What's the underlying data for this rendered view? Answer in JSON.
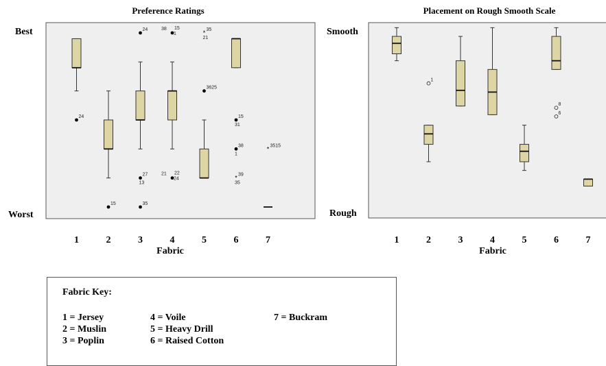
{
  "charts": [
    {
      "title": "Preference Ratings",
      "xlabel": "Fabric",
      "top_label": "Best",
      "bottom_label": "Worst"
    },
    {
      "title": "Placement on Rough Smooth Scale",
      "xlabel": "Fabric",
      "top_label": "Smooth",
      "bottom_label": "Rough"
    }
  ],
  "key": {
    "title": "Fabric Key:",
    "items": [
      "1 = Jersey",
      "2 = Muslin",
      "3 = Poplin",
      "4 = Voile",
      "5 = Heavy Drill",
      "6 = Raised Cotton",
      "7 = Buckram"
    ]
  },
  "colors": {
    "box_fill": "#ddd5a4",
    "plot_bg": "#efefef",
    "border": "#555555"
  },
  "chart_data": [
    {
      "type": "boxplot",
      "title": "Preference Ratings",
      "xlabel": "Fabric",
      "categories": [
        "1",
        "2",
        "3",
        "4",
        "5",
        "6",
        "7"
      ],
      "y_scale": "rating from 1 (Worst) to 7 (Best)",
      "ylim": [
        1,
        7
      ],
      "boxes": [
        {
          "cat": "1",
          "whisker_low": 5.0,
          "q1": 5.8,
          "median": 5.8,
          "q3": 6.8,
          "whisker_high": 6.8
        },
        {
          "cat": "2",
          "whisker_low": 2.0,
          "q1": 3.0,
          "median": 3.0,
          "q3": 4.0,
          "whisker_high": 5.0
        },
        {
          "cat": "3",
          "whisker_low": 3.0,
          "q1": 4.0,
          "median": 4.0,
          "q3": 5.0,
          "whisker_high": 6.0
        },
        {
          "cat": "4",
          "whisker_low": 3.0,
          "q1": 4.0,
          "median": 5.0,
          "q3": 5.0,
          "whisker_high": 6.0
        },
        {
          "cat": "5",
          "whisker_low": 2.0,
          "q1": 2.0,
          "median": 2.0,
          "q3": 3.0,
          "whisker_high": 4.0
        },
        {
          "cat": "6",
          "whisker_low": 5.8,
          "q1": 5.8,
          "median": 6.8,
          "q3": 6.8,
          "whisker_high": 6.8
        },
        {
          "cat": "7",
          "whisker_low": 1.0,
          "q1": 1.0,
          "median": 1.0,
          "q3": 1.0,
          "whisker_high": 1.0
        }
      ],
      "outliers": [
        {
          "cat": "1",
          "y": 4.0,
          "marker": "dot",
          "labels": [
            "24"
          ]
        },
        {
          "cat": "2",
          "y": 1.0,
          "marker": "dot",
          "labels": [
            "15"
          ]
        },
        {
          "cat": "3",
          "y": 7.0,
          "marker": "dot",
          "labels": [
            "24"
          ]
        },
        {
          "cat": "3",
          "y": 2.0,
          "marker": "dot",
          "labels": [
            "27",
            "13"
          ]
        },
        {
          "cat": "3",
          "y": 1.0,
          "marker": "dot",
          "labels": [
            "35"
          ]
        },
        {
          "cat": "4",
          "y": 7.0,
          "marker": "dot",
          "labels": [
            "38",
            "15",
            "1"
          ]
        },
        {
          "cat": "4",
          "y": 2.0,
          "marker": "dot",
          "labels": [
            "21",
            "22",
            "24"
          ]
        },
        {
          "cat": "5",
          "y": 7.0,
          "marker": "star",
          "labels": [
            "35",
            "21"
          ]
        },
        {
          "cat": "5",
          "y": 5.0,
          "marker": "dot",
          "labels": [
            "3625"
          ]
        },
        {
          "cat": "6",
          "y": 4.0,
          "marker": "dot",
          "labels": [
            "15",
            "31"
          ]
        },
        {
          "cat": "6",
          "y": 3.0,
          "marker": "dot",
          "labels": [
            "38",
            "1"
          ]
        },
        {
          "cat": "6",
          "y": 2.0,
          "marker": "star",
          "labels": [
            "39",
            "35"
          ]
        },
        {
          "cat": "7",
          "y": 3.0,
          "marker": "star",
          "labels": [
            "3515"
          ]
        }
      ]
    },
    {
      "type": "boxplot",
      "title": "Placement on Rough Smooth Scale",
      "xlabel": "Fabric",
      "categories": [
        "1",
        "2",
        "3",
        "4",
        "5",
        "6",
        "7"
      ],
      "y_scale": "position from 0 (Rough) to 1 (Smooth)",
      "ylim": [
        0,
        1
      ],
      "boxes": [
        {
          "cat": "1",
          "whisker_low": 0.84,
          "q1": 0.88,
          "median": 0.94,
          "q3": 0.98,
          "whisker_high": 1.03
        },
        {
          "cat": "2",
          "whisker_low": 0.26,
          "q1": 0.36,
          "median": 0.42,
          "q3": 0.47,
          "whisker_high": 0.47
        },
        {
          "cat": "3",
          "whisker_low": 0.58,
          "q1": 0.58,
          "median": 0.67,
          "q3": 0.84,
          "whisker_high": 0.98
        },
        {
          "cat": "4",
          "whisker_low": 0.53,
          "q1": 0.53,
          "median": 0.66,
          "q3": 0.79,
          "whisker_high": 1.03
        },
        {
          "cat": "5",
          "whisker_low": 0.21,
          "q1": 0.26,
          "median": 0.32,
          "q3": 0.36,
          "whisker_high": 0.47
        },
        {
          "cat": "6",
          "whisker_low": 0.79,
          "q1": 0.79,
          "median": 0.84,
          "q3": 0.98,
          "whisker_high": 1.03
        },
        {
          "cat": "7",
          "whisker_low": 0.12,
          "q1": 0.12,
          "median": 0.16,
          "q3": 0.16,
          "whisker_high": 0.16
        }
      ],
      "outliers": [
        {
          "cat": "2",
          "y": 0.71,
          "marker": "circle",
          "labels": [
            "1"
          ]
        },
        {
          "cat": "6",
          "y": 0.57,
          "marker": "circle",
          "labels": [
            "8"
          ]
        },
        {
          "cat": "6",
          "y": 0.52,
          "marker": "circle",
          "labels": [
            "6"
          ]
        }
      ]
    }
  ]
}
